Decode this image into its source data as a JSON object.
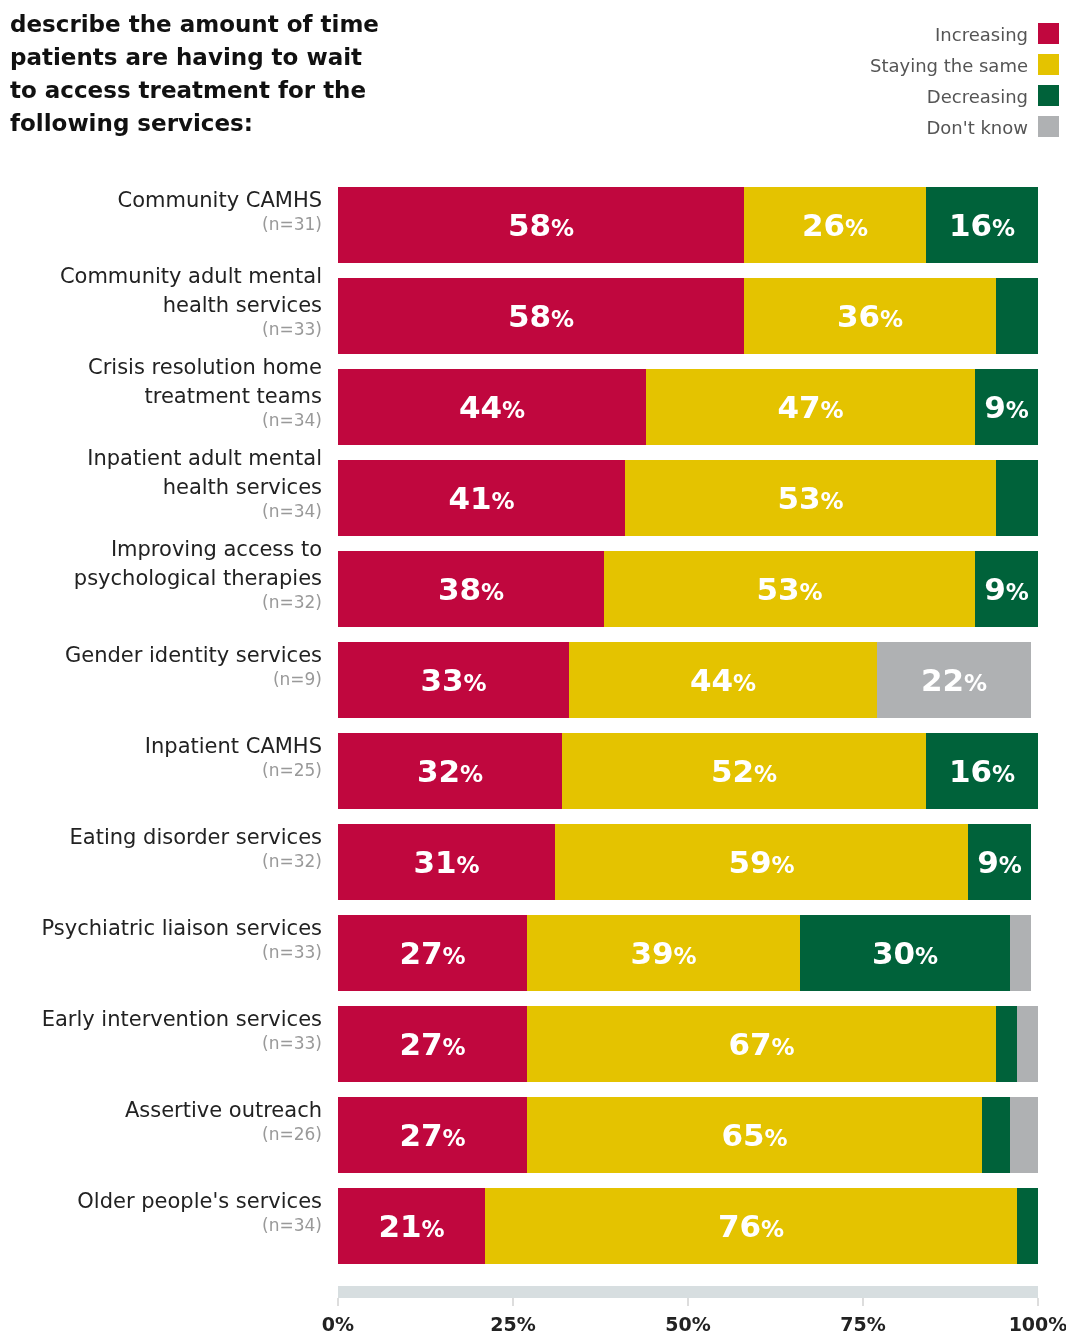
{
  "chart_data": {
    "type": "bar",
    "orientation": "horizontal",
    "stacked": true,
    "title": "describe the amount of time\npatients are having to wait\nto access treatment for the\nfollowing services:",
    "categories": [
      "Community CAMHS\n(n=31)",
      "Community adult mental\nhealth services\n(n=33)",
      "Crisis resolution home\ntreatment teams\n(n=34)",
      "Inpatient adult mental\nhealth services\n(n=34)",
      "Improving access to\npsychological therapies\n(n=32)",
      "Gender identity services\n(n=9)",
      "Inpatient CAMHS\n(n=25)",
      "Eating disorder services\n(n=32)",
      "Psychiatric liaison services\n(n=33)",
      "Early intervention services\n(n=33)",
      "Assertive outreach\n(n=26)",
      "Older people's services\n(n=34)"
    ],
    "series": [
      {
        "name": "Increasing",
        "color": "#c0073e",
        "values": [
          58,
          58,
          44,
          41,
          38,
          33,
          32,
          31,
          27,
          27,
          27,
          21
        ],
        "value_labels": [
          "58%",
          "58%",
          "44%",
          "41%",
          "38%",
          "33%",
          "32%",
          "31%",
          "27%",
          "27%",
          "27%",
          "21%"
        ]
      },
      {
        "name": "Staying the same",
        "color": "#e4c300",
        "values": [
          26,
          36,
          47,
          53,
          53,
          44,
          52,
          59,
          39,
          67,
          65,
          76
        ],
        "value_labels": [
          "26%",
          "36%",
          "47%",
          "53%",
          "53%",
          "44%",
          "52%",
          "59%",
          "39%",
          "67%",
          "65%",
          "76%"
        ]
      },
      {
        "name": "Decreasing",
        "color": "#00623a",
        "values": [
          16,
          6,
          9,
          6,
          9,
          0,
          16,
          9,
          30,
          3,
          4,
          3
        ],
        "value_labels": [
          "16%",
          null,
          "9%",
          null,
          "9%",
          null,
          "16%",
          "9%",
          "30%",
          null,
          null,
          null
        ]
      },
      {
        "name": "Don't know",
        "color": "#afb1b3",
        "values": [
          0,
          0,
          0,
          0,
          0,
          22,
          0,
          0,
          3,
          3,
          4,
          0
        ],
        "value_labels": [
          null,
          null,
          null,
          null,
          null,
          "22%",
          null,
          null,
          null,
          null,
          null,
          null
        ]
      }
    ],
    "xlim": [
      0,
      100
    ],
    "xticks": [
      {
        "value": 0,
        "label": "0%"
      },
      {
        "value": 25,
        "label": "25%"
      },
      {
        "value": 50,
        "label": "50%"
      },
      {
        "value": 75,
        "label": "75%"
      },
      {
        "value": 100,
        "label": "100%"
      }
    ],
    "legend": "top right",
    "grid": false
  }
}
